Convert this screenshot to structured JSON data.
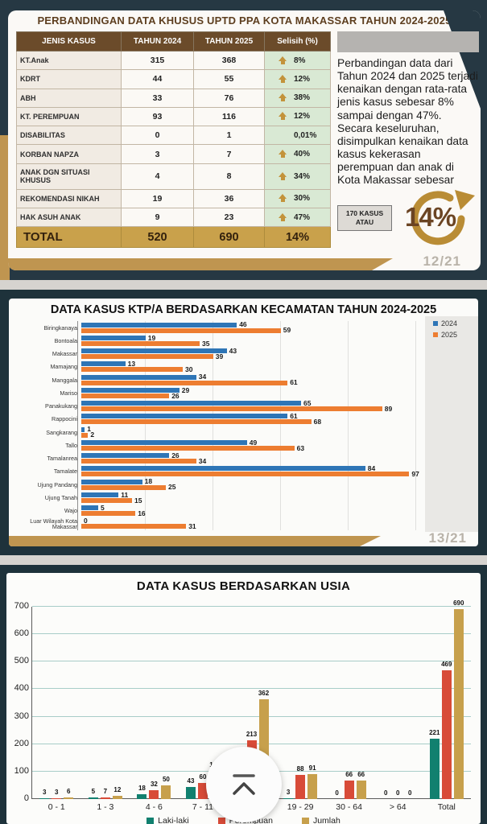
{
  "slide1": {
    "title": "PERBANDINGAN DATA KHUSUS UPTD PPA KOTA MAKASSAR TAHUN 2024-2025",
    "page_number": "12/21",
    "table": {
      "headers": [
        "JENIS KASUS",
        "TAHUN 2024",
        "TAHUN 2025",
        "Selisih (%)"
      ],
      "rows": [
        {
          "label": "KT.Anak",
          "y2024": "315",
          "y2025": "368",
          "diff": "8%",
          "arrow_up": true
        },
        {
          "label": "KDRT",
          "y2024": "44",
          "y2025": "55",
          "diff": "12%",
          "arrow_up": true
        },
        {
          "label": "ABH",
          "y2024": "33",
          "y2025": "76",
          "diff": "38%",
          "arrow_up": true
        },
        {
          "label": "KT. PEREMPUAN",
          "y2024": "93",
          "y2025": "116",
          "diff": "12%",
          "arrow_up": true
        },
        {
          "label": "DISABILITAS",
          "y2024": "0",
          "y2025": "1",
          "diff": "0,01%",
          "arrow_up": false
        },
        {
          "label": "KORBAN NAPZA",
          "y2024": "3",
          "y2025": "7",
          "diff": "40%",
          "arrow_up": true
        },
        {
          "label": "ANAK DGN SITUASI KHUSUS",
          "y2024": "4",
          "y2025": "8",
          "diff": "34%",
          "arrow_up": true
        },
        {
          "label": "REKOMENDASI NIKAH",
          "y2024": "19",
          "y2025": "36",
          "diff": "30%",
          "arrow_up": true
        },
        {
          "label": "HAK ASUH ANAK",
          "y2024": "9",
          "y2025": "23",
          "diff": "47%",
          "arrow_up": true
        }
      ],
      "total_row": {
        "label": "TOTAL",
        "y2024": "520",
        "y2025": "690",
        "diff": "14%"
      }
    },
    "summary_text": "Perbandingan data dari Tahun 2024 dan 2025 terjadi kenaikan dengan rata-rata jenis kasus sebesar 8% sampai dengan 47%. Secara keseluruhan, disimpulkan kenaikan data kasus kekerasan perempuan dan anak di Kota Makassar sebesar",
    "badge_text": "170 KASUS ATAU",
    "highlight_percent": "14%",
    "colors": {
      "header_brown": "#6b4b2a",
      "total_gold": "#c9a14b",
      "diff_green": "#d9e9d4",
      "arrow_gold": "#c3933b"
    }
  },
  "slide2": {
    "page_number": "13/21"
  },
  "chart_data": [
    {
      "type": "bar",
      "orientation": "horizontal",
      "title": "DATA KASUS KTP/A BERDASARKAN KECAMATAN TAHUN 2024-2025",
      "categories": [
        "Biringkanaya",
        "Bontoala",
        "Makassar",
        "Mamajang",
        "Manggala",
        "Mariso",
        "Panakukang",
        "Rappocini",
        "Sangkarang",
        "Tallo",
        "Tamalanrea",
        "Tamalate",
        "Ujung Pandang",
        "Ujung Tanah",
        "Wajo",
        "Luar Wilayah Kota Makassar"
      ],
      "series": [
        {
          "name": "2024",
          "color": "#2E75B6",
          "values": [
            46,
            19,
            43,
            13,
            34,
            29,
            65,
            61,
            1,
            49,
            26,
            84,
            18,
            11,
            5,
            0
          ]
        },
        {
          "name": "2025",
          "color": "#ED7D31",
          "values": [
            59,
            35,
            39,
            30,
            61,
            26,
            89,
            68,
            2,
            63,
            34,
            97,
            25,
            15,
            16,
            31
          ]
        }
      ],
      "xlim": [
        0,
        100
      ],
      "grid": "vertical every 20",
      "legend_position": "top-right",
      "value_labels": true
    },
    {
      "type": "bar",
      "orientation": "vertical",
      "title": "DATA KASUS BERDASARKAN USIA",
      "categories": [
        "0 - 1",
        "1 - 3",
        "4 - 6",
        "7 - 11",
        "12 - 18",
        "19 - 29",
        "30 - 64",
        "> 64",
        "Total"
      ],
      "series": [
        {
          "name": "Laki-laki",
          "color": "#11806F",
          "values": [
            3,
            5,
            18,
            43,
            149,
            3,
            0,
            0,
            221
          ]
        },
        {
          "name": "Perempuan",
          "color": "#D84B38",
          "values": [
            3,
            7,
            32,
            60,
            213,
            88,
            66,
            0,
            469
          ]
        },
        {
          "name": "Jumlah",
          "color": "#C7A04C",
          "values": [
            6,
            12,
            50,
            103,
            362,
            91,
            66,
            0,
            690
          ]
        }
      ],
      "ylim": [
        0,
        700
      ],
      "yticks": [
        0,
        100,
        200,
        300,
        400,
        500,
        600,
        700
      ],
      "grid": "horizontal every 100",
      "legend_position": "bottom",
      "value_labels": true
    }
  ],
  "floating_button": {
    "icon": "scroll-to-top-chevron"
  }
}
